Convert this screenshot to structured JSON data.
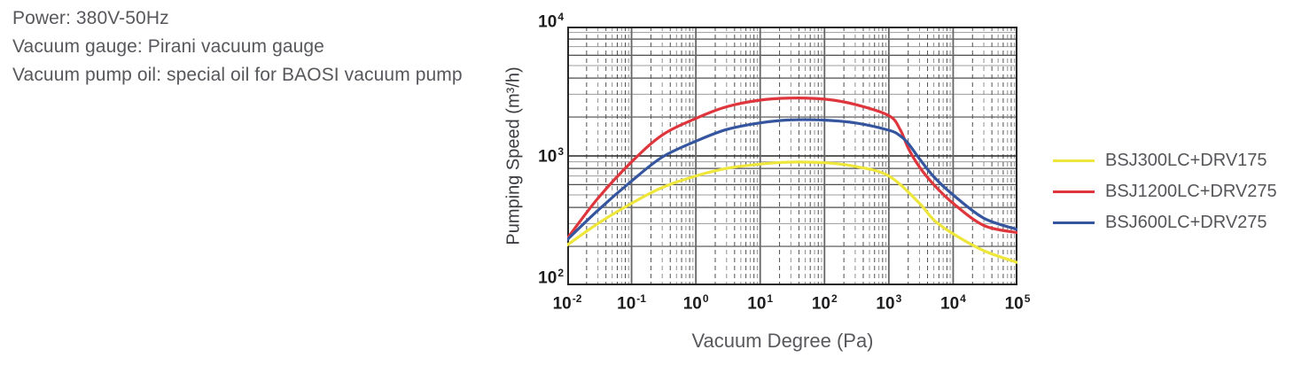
{
  "info": {
    "lines": [
      "Power: 380V-50Hz",
      "Vacuum gauge: Pirani vacuum gauge",
      "Vacuum pump oil: special oil for BAOSI vacuum pump"
    ]
  },
  "chart_data": {
    "type": "line",
    "title": "",
    "xlabel": "Vacuum Degree (Pa)",
    "ylabel": "Pumping Speed (m³/h)",
    "x_scale": "log",
    "y_scale": "log",
    "x_range_exp": [
      -2,
      5
    ],
    "y_range_exp": [
      2,
      4
    ],
    "grid": true,
    "legend_position": "right",
    "x_ticks": [
      {
        "m": "10",
        "e": "-2"
      },
      {
        "m": "10",
        "e": "-1"
      },
      {
        "m": "10",
        "e": "0"
      },
      {
        "m": "10",
        "e": "1"
      },
      {
        "m": "10",
        "e": "2"
      },
      {
        "m": "10",
        "e": "3"
      },
      {
        "m": "10",
        "e": "4"
      },
      {
        "m": "10",
        "e": "5"
      }
    ],
    "y_ticks": [
      {
        "m": "10",
        "e": "4"
      },
      {
        "m": "10",
        "e": "3"
      },
      {
        "m": "10",
        "e": "2"
      }
    ],
    "series": [
      {
        "name": "BSJ300LC+DRV175",
        "color": "#eee63a",
        "points": [
          [
            0.01,
            205
          ],
          [
            0.03,
            300
          ],
          [
            0.1,
            430
          ],
          [
            0.3,
            570
          ],
          [
            1,
            700
          ],
          [
            3,
            800
          ],
          [
            10,
            865
          ],
          [
            30,
            895
          ],
          [
            100,
            885
          ],
          [
            300,
            830
          ],
          [
            1000,
            700
          ],
          [
            3000,
            430
          ],
          [
            5000,
            320
          ],
          [
            10000,
            250
          ],
          [
            30000,
            185
          ],
          [
            100000,
            150
          ]
        ]
      },
      {
        "name": "BSJ1200LC+DRV275",
        "color": "#de363c",
        "points": [
          [
            0.01,
            230
          ],
          [
            0.03,
            470
          ],
          [
            0.1,
            900
          ],
          [
            0.3,
            1450
          ],
          [
            1,
            1950
          ],
          [
            3,
            2400
          ],
          [
            10,
            2700
          ],
          [
            30,
            2800
          ],
          [
            100,
            2750
          ],
          [
            300,
            2500
          ],
          [
            1000,
            2050
          ],
          [
            1500,
            1600
          ],
          [
            2000,
            1150
          ],
          [
            3000,
            820
          ],
          [
            5000,
            600
          ],
          [
            10000,
            430
          ],
          [
            30000,
            290
          ],
          [
            100000,
            255
          ]
        ]
      },
      {
        "name": "BSJ600LC+DRV275",
        "color": "#35569f",
        "points": [
          [
            0.01,
            225
          ],
          [
            0.03,
            380
          ],
          [
            0.1,
            640
          ],
          [
            0.3,
            980
          ],
          [
            1,
            1300
          ],
          [
            3,
            1600
          ],
          [
            10,
            1800
          ],
          [
            30,
            1900
          ],
          [
            100,
            1890
          ],
          [
            300,
            1800
          ],
          [
            1000,
            1580
          ],
          [
            1500,
            1430
          ],
          [
            2000,
            1250
          ],
          [
            3000,
            950
          ],
          [
            5000,
            690
          ],
          [
            10000,
            500
          ],
          [
            30000,
            330
          ],
          [
            100000,
            270
          ]
        ]
      }
    ]
  }
}
